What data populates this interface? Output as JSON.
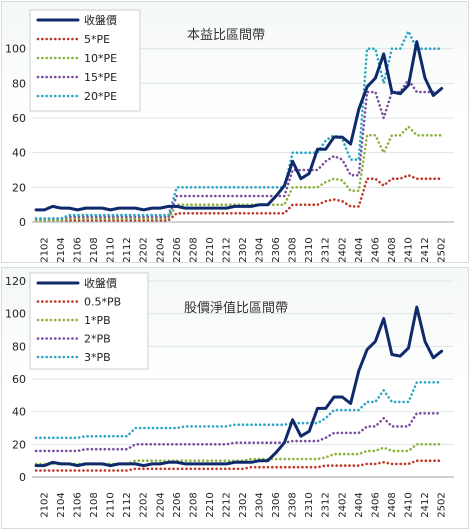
{
  "chart_data": [
    {
      "type": "line",
      "title": "本益比區間帶",
      "ylim": [
        0,
        120
      ],
      "yticks": [
        0,
        20,
        40,
        60,
        80,
        100
      ],
      "x": [
        "2101",
        "2102",
        "2103",
        "2104",
        "2105",
        "2106",
        "2107",
        "2108",
        "2109",
        "2110",
        "2111",
        "2112",
        "2201",
        "2202",
        "2203",
        "2204",
        "2205",
        "2206",
        "2207",
        "2208",
        "2209",
        "2210",
        "2211",
        "2212",
        "2301",
        "2302",
        "2303",
        "2304",
        "2305",
        "2306",
        "2307",
        "2308",
        "2309",
        "2310",
        "2311",
        "2312",
        "2401",
        "2402",
        "2403",
        "2404",
        "2405",
        "2406",
        "2407",
        "2408",
        "2409",
        "2410",
        "2411",
        "2412",
        "2501",
        "2502",
        "2503"
      ],
      "xticks": [
        "2102",
        "2104",
        "2106",
        "2108",
        "2110",
        "2112",
        "2202",
        "2204",
        "2206",
        "2208",
        "2210",
        "2212",
        "2302",
        "2304",
        "2306",
        "2308",
        "2310",
        "2312",
        "2402",
        "2404",
        "2406",
        "2408",
        "2410",
        "2412",
        "2502"
      ],
      "legend_position": "top-left",
      "grid": true,
      "series": [
        {
          "name": "收盤價",
          "color": "#0f2a6b",
          "style": "solid",
          "values": [
            7,
            7,
            9,
            8,
            8,
            7,
            8,
            8,
            8,
            7,
            8,
            8,
            8,
            7,
            8,
            8,
            9,
            9,
            8,
            8,
            8,
            8,
            8,
            8,
            9,
            9,
            9,
            10,
            10,
            15,
            21,
            35,
            25,
            28,
            42,
            42,
            49,
            49,
            45,
            65,
            78,
            83,
            97,
            75,
            74,
            79,
            104,
            83,
            73,
            77,
            null
          ]
        },
        {
          "name": "5*PE",
          "color": "#c0392b",
          "style": "dotted",
          "values": [
            1,
            1,
            1,
            1,
            1,
            1,
            1,
            1,
            1,
            1,
            1,
            1,
            1,
            1,
            1,
            1,
            1,
            5,
            5,
            5,
            5,
            5,
            5,
            5,
            5,
            5,
            5,
            5,
            5,
            5,
            5,
            10,
            10,
            10,
            10,
            12,
            13,
            12,
            9,
            9,
            25,
            25,
            21,
            25,
            25,
            27,
            25,
            25,
            25,
            25,
            null
          ]
        },
        {
          "name": "10*PE",
          "color": "#8db33f",
          "style": "dotted",
          "values": [
            1,
            1,
            1,
            1,
            2,
            2,
            2,
            2,
            2,
            2,
            2,
            2,
            2,
            2,
            2,
            2,
            2,
            10,
            10,
            10,
            10,
            10,
            10,
            10,
            10,
            10,
            10,
            10,
            10,
            10,
            10,
            20,
            20,
            20,
            20,
            23,
            25,
            24,
            18,
            18,
            50,
            50,
            40,
            50,
            50,
            55,
            50,
            50,
            50,
            50,
            null
          ]
        },
        {
          "name": "15*PE",
          "color": "#7a4fa0",
          "style": "dotted",
          "values": [
            2,
            2,
            2,
            2,
            3,
            3,
            3,
            3,
            3,
            3,
            3,
            3,
            3,
            3,
            3,
            3,
            3,
            15,
            15,
            15,
            15,
            15,
            15,
            15,
            15,
            15,
            15,
            15,
            15,
            15,
            15,
            30,
            30,
            30,
            30,
            35,
            38,
            36,
            27,
            27,
            75,
            75,
            60,
            75,
            75,
            82,
            75,
            75,
            75,
            75,
            null
          ]
        },
        {
          "name": "20*PE",
          "color": "#2ea7c5",
          "style": "dotted",
          "values": [
            2,
            2,
            2,
            2,
            4,
            4,
            4,
            4,
            4,
            4,
            4,
            4,
            4,
            4,
            4,
            4,
            4,
            20,
            20,
            20,
            20,
            20,
            20,
            20,
            20,
            20,
            20,
            20,
            20,
            20,
            20,
            40,
            40,
            40,
            40,
            47,
            50,
            48,
            36,
            36,
            100,
            100,
            80,
            100,
            100,
            110,
            100,
            100,
            100,
            100,
            null
          ]
        }
      ]
    },
    {
      "type": "line",
      "title": "股價淨值比區間帶",
      "ylim": [
        0,
        120
      ],
      "yticks": [
        0,
        20,
        40,
        60,
        80,
        100,
        120
      ],
      "x": [
        "2101",
        "2102",
        "2103",
        "2104",
        "2105",
        "2106",
        "2107",
        "2108",
        "2109",
        "2110",
        "2111",
        "2112",
        "2201",
        "2202",
        "2203",
        "2204",
        "2205",
        "2206",
        "2207",
        "2208",
        "2209",
        "2210",
        "2211",
        "2212",
        "2301",
        "2302",
        "2303",
        "2304",
        "2305",
        "2306",
        "2307",
        "2308",
        "2309",
        "2310",
        "2311",
        "2312",
        "2401",
        "2402",
        "2403",
        "2404",
        "2405",
        "2406",
        "2407",
        "2408",
        "2409",
        "2410",
        "2411",
        "2412",
        "2501",
        "2502",
        "2503"
      ],
      "xticks": [
        "2102",
        "2104",
        "2106",
        "2108",
        "2110",
        "2112",
        "2202",
        "2204",
        "2206",
        "2208",
        "2210",
        "2212",
        "2302",
        "2304",
        "2306",
        "2308",
        "2310",
        "2312",
        "2402",
        "2404",
        "2406",
        "2408",
        "2410",
        "2412",
        "2502"
      ],
      "legend_position": "top-left",
      "grid": true,
      "series": [
        {
          "name": "收盤價",
          "color": "#0f2a6b",
          "style": "solid",
          "values": [
            7,
            7,
            9,
            8,
            8,
            7,
            8,
            8,
            8,
            7,
            8,
            8,
            8,
            7,
            8,
            8,
            9,
            9,
            8,
            8,
            8,
            8,
            8,
            8,
            9,
            9,
            9,
            10,
            10,
            15,
            21,
            35,
            25,
            28,
            42,
            42,
            49,
            49,
            45,
            65,
            78,
            83,
            97,
            75,
            74,
            79,
            104,
            83,
            73,
            77,
            null
          ]
        },
        {
          "name": "0.5*PB",
          "color": "#c0392b",
          "style": "dotted",
          "values": [
            4,
            4,
            4,
            4,
            4,
            4,
            4,
            4,
            4,
            4,
            4,
            4,
            5,
            5,
            5,
            5,
            5,
            5,
            5,
            5,
            5,
            5,
            5,
            5,
            5,
            5,
            6,
            6,
            6,
            6,
            6,
            6,
            6,
            6,
            6,
            7,
            7,
            7,
            7,
            7,
            8,
            8,
            9,
            8,
            8,
            8,
            10,
            10,
            10,
            10,
            null
          ]
        },
        {
          "name": "1*PB",
          "color": "#8db33f",
          "style": "dotted",
          "values": [
            8,
            8,
            8,
            8,
            8,
            8,
            8,
            8,
            8,
            8,
            8,
            8,
            10,
            10,
            10,
            10,
            10,
            10,
            10,
            10,
            10,
            10,
            10,
            10,
            10,
            10,
            11,
            11,
            11,
            11,
            11,
            11,
            11,
            11,
            11,
            12,
            14,
            14,
            14,
            14,
            16,
            16,
            18,
            16,
            16,
            16,
            20,
            20,
            20,
            20,
            null
          ]
        },
        {
          "name": "2*PB",
          "color": "#7a4fa0",
          "style": "dotted",
          "values": [
            16,
            16,
            16,
            16,
            16,
            16,
            17,
            17,
            17,
            17,
            17,
            17,
            20,
            20,
            20,
            20,
            20,
            20,
            20,
            20,
            20,
            20,
            20,
            20,
            21,
            21,
            21,
            21,
            21,
            21,
            21,
            22,
            22,
            22,
            22,
            24,
            27,
            27,
            27,
            27,
            31,
            31,
            36,
            31,
            31,
            31,
            39,
            39,
            39,
            39,
            null
          ]
        },
        {
          "name": "3*PB",
          "color": "#2ea7c5",
          "style": "dotted",
          "values": [
            24,
            24,
            24,
            24,
            24,
            24,
            25,
            25,
            25,
            25,
            25,
            25,
            30,
            30,
            30,
            30,
            30,
            30,
            31,
            31,
            31,
            31,
            31,
            31,
            32,
            32,
            32,
            32,
            32,
            32,
            32,
            33,
            33,
            33,
            33,
            36,
            41,
            41,
            41,
            41,
            46,
            46,
            53,
            46,
            46,
            46,
            58,
            58,
            58,
            58,
            null
          ]
        }
      ]
    }
  ]
}
